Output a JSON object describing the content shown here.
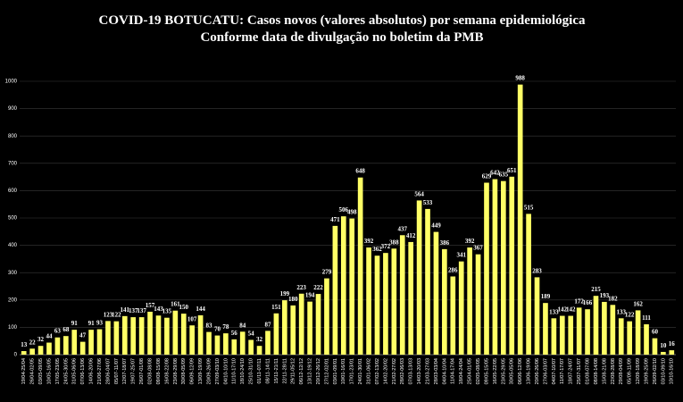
{
  "chart_data": {
    "type": "bar",
    "title": "COVID-19 BOTUCATU: Casos novos (valores absolutos) por semana epidemiológica",
    "subtitle": "Conforme data de divulgação no boletim da PMB",
    "categories": [
      "19/04-25/04",
      "26/04-02/05",
      "03/05-09/05",
      "10/05-16/05",
      "17/05-23/05",
      "24/05-30/05",
      "31/05-06/06",
      "07/06-13/06",
      "14/06-20/06",
      "21/06-27/06",
      "28/06-04/07",
      "05/07-11/07",
      "12/07-18/07",
      "19/07-25/07",
      "26/07-01/08",
      "02/08-08/08",
      "09/08-15/08",
      "16/08-22/08",
      "23/08-29/08",
      "30/08-05/09",
      "06/09-12/09",
      "13/09-19/09",
      "20/09-26/09",
      "27/09-03/10",
      "04/10-10/10",
      "11/10-17/10",
      "18/10-24/10",
      "25/10-31/10",
      "01/11-07/11",
      "08/11-14/11",
      "15/11-21/11",
      "22/11-28/11",
      "29/11-05/12",
      "06/12-12/12",
      "13/12-19/12",
      "20/12-26/12",
      "27/12-02/01",
      "03/01-09/01",
      "10/01-16/01",
      "17/01-23/01",
      "24/01-30/01",
      "31/01-06/02",
      "07/02-13/02",
      "14/02-20/02",
      "21/02-27/02",
      "28/02-06/03",
      "07/03-13/03",
      "14/03-20/03",
      "21/03-27/03",
      "28/03-03/04",
      "04/04-10/04",
      "11/04-17/04",
      "18/04-24/04",
      "25/04-01/05",
      "02/05-08/05",
      "09/05-15/05",
      "16/05-22/05",
      "23/05-29/05",
      "30/05-05/06",
      "06/06-12/06",
      "13/06-19/06",
      "20/06-26/06",
      "27/06-03/07",
      "04/07-10/07",
      "11/07-17/07",
      "18/07-24/07",
      "25/07-31/07",
      "01/08-07/08",
      "08/08-14/08",
      "15/08-21/08",
      "22/08-28/08",
      "29/08-04/09",
      "05/09-11/09",
      "12/09-18/09",
      "19/09-25/09",
      "26/09-02/10",
      "03/10-09/10",
      "10/10-16/10"
    ],
    "values": [
      13,
      22,
      32,
      44,
      63,
      68,
      91,
      47,
      91,
      93,
      123,
      122,
      141,
      137,
      137,
      157,
      143,
      135,
      161,
      150,
      107,
      144,
      83,
      70,
      78,
      56,
      84,
      54,
      32,
      87,
      151,
      199,
      180,
      223,
      194,
      222,
      279,
      471,
      506,
      498,
      648,
      392,
      362,
      372,
      388,
      437,
      412,
      564,
      533,
      449,
      386,
      286,
      341,
      392,
      367,
      629,
      642,
      635,
      651,
      988,
      515,
      283,
      189,
      133,
      142,
      142,
      172,
      166,
      215,
      193,
      182,
      133,
      122,
      162,
      111,
      60,
      10,
      16
    ],
    "color": "#ffff66",
    "ylim": [
      0,
      1000
    ],
    "yticks": [
      0,
      100,
      200,
      300,
      400,
      500,
      600,
      700,
      800,
      900,
      1000
    ],
    "grid": true
  }
}
